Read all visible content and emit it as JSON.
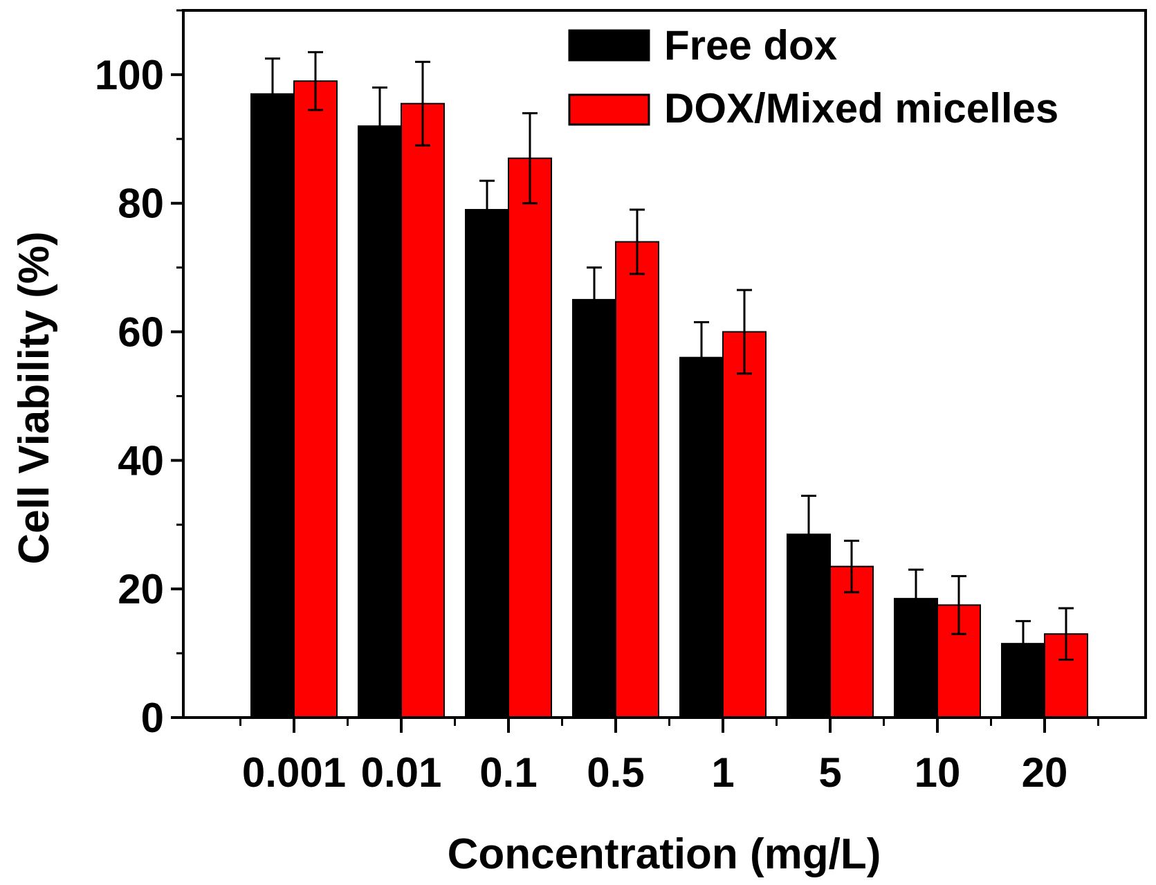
{
  "chart_data": {
    "type": "bar",
    "title": "",
    "xlabel": "Concentration (mg/L)",
    "ylabel": "Cell Viability (%)",
    "ylim": [
      0,
      110
    ],
    "yticks": [
      0,
      20,
      40,
      60,
      80,
      100
    ],
    "ytick_labels": [
      "0",
      "20",
      "40",
      "60",
      "80",
      "100"
    ],
    "categories": [
      "0.001",
      "0.01",
      "0.1",
      "0.5",
      "1",
      "5",
      "10",
      "20"
    ],
    "legend_position": "top-right",
    "series": [
      {
        "name": "Free dox",
        "color": "#000000",
        "values": [
          97,
          92,
          79,
          65,
          56,
          28.5,
          18.5,
          11.5
        ],
        "errors": [
          5.5,
          6,
          4.5,
          5,
          5.5,
          6,
          4.5,
          3.5
        ]
      },
      {
        "name": "DOX/Mixed micelles",
        "color": "#ff0000",
        "values": [
          99,
          95.5,
          87,
          74,
          60,
          23.5,
          17.5,
          13
        ],
        "errors": [
          4.5,
          6.5,
          7,
          5,
          6.5,
          4,
          4.5,
          4
        ]
      }
    ]
  }
}
